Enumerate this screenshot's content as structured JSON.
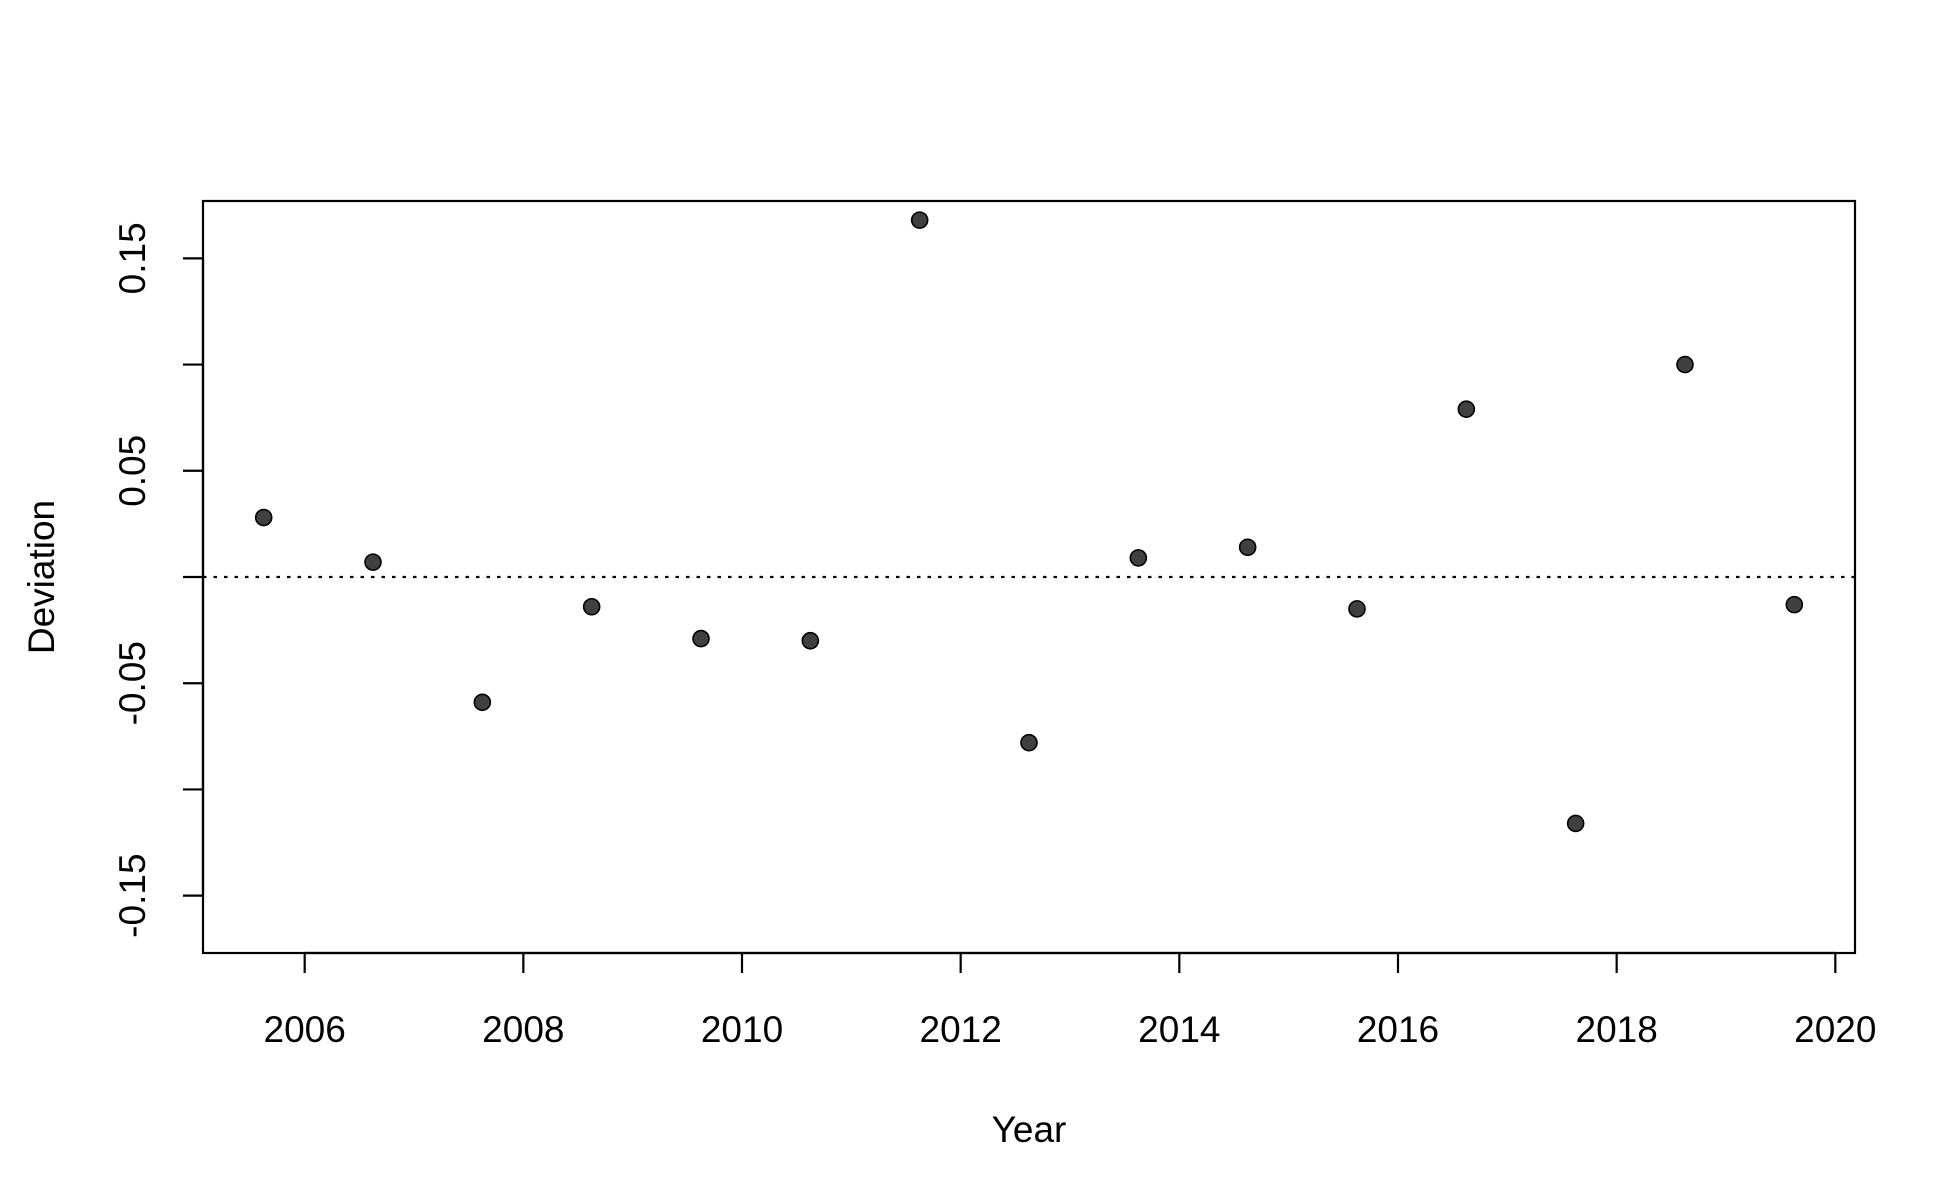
{
  "chart_data": {
    "type": "scatter",
    "title": "",
    "xlabel": "Year",
    "ylabel": "Deviation",
    "xlim": [
      2005.07,
      2020.18
    ],
    "ylim": [
      -0.177,
      0.177
    ],
    "xticks": [
      2006,
      2008,
      2010,
      2012,
      2014,
      2016,
      2018,
      2020
    ],
    "xtick_labels": [
      "2006",
      "2008",
      "2010",
      "2012",
      "2014",
      "2016",
      "2018",
      "2020"
    ],
    "yticks": [
      -0.15,
      -0.1,
      -0.05,
      0,
      0.05,
      0.1,
      0.15
    ],
    "ytick_labels": [
      "-0.15",
      "",
      "-0.05",
      "",
      "0.05",
      "",
      "0.15"
    ],
    "grid": false,
    "reference_line": {
      "y": 0,
      "style": "dotted"
    },
    "point_color": "#404040",
    "series": [
      {
        "x": [
          2005.625,
          2006.625,
          2007.625,
          2008.625,
          2009.625,
          2010.625,
          2011.625,
          2012.625,
          2013.625,
          2014.625,
          2015.625,
          2016.625,
          2017.625,
          2018.625,
          2019.625
        ],
        "y": [
          0.028,
          0.007,
          -0.059,
          -0.014,
          -0.029,
          -0.03,
          0.168,
          -0.078,
          0.009,
          0.014,
          -0.015,
          0.079,
          -0.116,
          0.1,
          -0.013
        ]
      }
    ]
  }
}
